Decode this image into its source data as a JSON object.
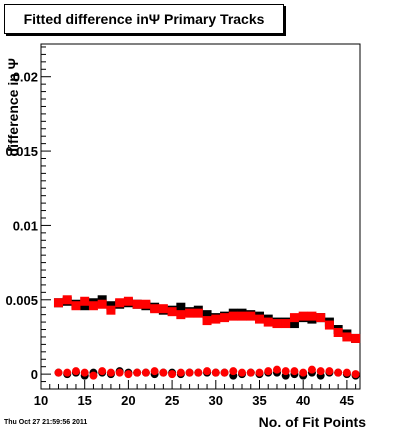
{
  "title": "Fitted difference inΨ  Primary Tracks",
  "footer": "Thu Oct 27 21:59:56 2011",
  "chart_data": {
    "type": "scatter",
    "title": "Fitted difference inΨ  Primary Tracks",
    "xlabel": "No. of Fit Points",
    "ylabel": "difference in Ψ",
    "xlim": [
      10,
      46.5
    ],
    "ylim": [
      -0.001,
      0.0222
    ],
    "xticks": [
      10,
      15,
      20,
      25,
      30,
      35,
      40,
      45
    ],
    "yticks": [
      0,
      0.005,
      0.01,
      0.015,
      0.02
    ],
    "ytick_labels": [
      "0",
      "0.005",
      "0.01",
      "0.015",
      "0.02"
    ],
    "grid": false,
    "x": [
      12,
      13,
      14,
      15,
      16,
      17,
      18,
      19,
      20,
      21,
      22,
      23,
      24,
      25,
      26,
      27,
      28,
      29,
      30,
      31,
      32,
      33,
      34,
      35,
      36,
      37,
      38,
      39,
      40,
      41,
      42,
      43,
      44,
      45,
      46
    ],
    "series": [
      {
        "marker": "square",
        "color": "#000000",
        "values": [
          0.0048,
          0.0049,
          0.0047,
          0.0046,
          0.0048,
          0.005,
          0.0046,
          0.0047,
          0.0048,
          0.0047,
          0.0046,
          0.0045,
          0.0043,
          0.0043,
          0.0045,
          0.0042,
          0.0043,
          0.004,
          0.0038,
          0.0039,
          0.0041,
          0.0041,
          0.004,
          0.0039,
          0.0037,
          0.0035,
          0.0035,
          0.0034,
          0.0038,
          0.0037,
          0.0038,
          0.0035,
          0.003,
          0.0027,
          0.0024
        ]
      },
      {
        "marker": "square",
        "color": "#ff0000",
        "values": [
          0.0048,
          0.005,
          0.0046,
          0.0049,
          0.0046,
          0.0047,
          0.0043,
          0.0048,
          0.0049,
          0.0047,
          0.0047,
          0.0044,
          0.0044,
          0.0042,
          0.004,
          0.0041,
          0.0041,
          0.0036,
          0.0037,
          0.0038,
          0.0039,
          0.0039,
          0.0039,
          0.0037,
          0.0035,
          0.0034,
          0.0034,
          0.0038,
          0.0039,
          0.0039,
          0.0038,
          0.0033,
          0.0028,
          0.0025,
          0.0024
        ]
      },
      {
        "marker": "circle",
        "color": "#000000",
        "values": [
          0.0001,
          0.0,
          0.0001,
          -0.0001,
          0.0001,
          0.0001,
          0.0,
          0.0002,
          0.0001,
          0.0001,
          0.0001,
          0.0,
          0.0001,
          0.0001,
          0.0,
          0.0001,
          0.0001,
          0.0001,
          0.0001,
          0.0001,
          -0.0001,
          0.0,
          0.0001,
          0.0,
          0.0001,
          0.0001,
          -0.0001,
          0.0,
          -0.0001,
          0.0001,
          -0.0001,
          0.0001,
          0.0001,
          0.0,
          -0.0001
        ]
      },
      {
        "marker": "circle",
        "color": "#ff0000",
        "values": [
          0.0001,
          0.0001,
          0.0002,
          0.0001,
          -0.0001,
          0.0002,
          0.0001,
          0.0001,
          0.0,
          0.0001,
          0.0001,
          0.0002,
          0.0001,
          0.0,
          0.0001,
          0.0001,
          0.0001,
          0.0002,
          0.0001,
          0.0001,
          0.0002,
          0.0001,
          0.0001,
          0.0001,
          0.0002,
          0.0003,
          0.0002,
          0.0002,
          0.0001,
          0.0003,
          0.0002,
          0.0002,
          0.0001,
          0.0001,
          0.0
        ]
      }
    ]
  }
}
